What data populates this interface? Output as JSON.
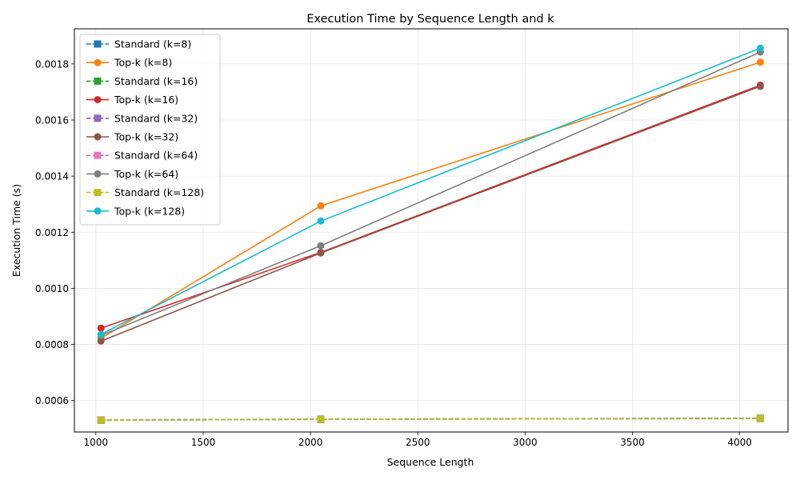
{
  "chart_data": {
    "type": "line",
    "title": "Execution Time by Sequence Length and k",
    "xlabel": "Sequence Length",
    "ylabel": "Execution Time (s)",
    "xlim": [
      900,
      4225
    ],
    "ylim": [
      0.000488,
      0.001925
    ],
    "xticks": [
      1000,
      1500,
      2000,
      2500,
      3000,
      3500,
      4000
    ],
    "xtick_labels": [
      "1000",
      "1500",
      "2000",
      "2500",
      "3000",
      "3500",
      "4000"
    ],
    "yticks": [
      0.0006,
      0.0008,
      0.001,
      0.0012,
      0.0014,
      0.0016,
      0.0018
    ],
    "ytick_labels": [
      "0.0006",
      "0.0008",
      "0.0010",
      "0.0012",
      "0.0014",
      "0.0016",
      "0.0018"
    ],
    "grid": true,
    "legend_position": "top-left",
    "x": [
      1024,
      2048,
      4096
    ],
    "series": [
      {
        "name": "Standard (k=8)",
        "color": "#1f77b4",
        "marker": "square",
        "style": "dashed",
        "values": [
          0.000531,
          0.000534,
          0.000537
        ]
      },
      {
        "name": "Top-k (k=8)",
        "color": "#ff7f0e",
        "marker": "circle",
        "style": "solid",
        "values": [
          0.000822,
          0.001294,
          0.001806
        ]
      },
      {
        "name": "Standard (k=16)",
        "color": "#2ca02c",
        "marker": "square",
        "style": "dashed",
        "values": [
          0.00053,
          0.000533,
          0.000536
        ]
      },
      {
        "name": "Top-k (k=16)",
        "color": "#d62728",
        "marker": "circle",
        "style": "solid",
        "values": [
          0.000858,
          0.001128,
          0.001724
        ]
      },
      {
        "name": "Standard (k=32)",
        "color": "#9467bd",
        "marker": "square",
        "style": "dashed",
        "values": [
          0.00053,
          0.000533,
          0.000537
        ]
      },
      {
        "name": "Top-k (k=32)",
        "color": "#8c564b",
        "marker": "circle",
        "style": "solid",
        "values": [
          0.000812,
          0.001126,
          0.00172
        ]
      },
      {
        "name": "Standard (k=64)",
        "color": "#e377c2",
        "marker": "square",
        "style": "dashed",
        "values": [
          0.000531,
          0.000534,
          0.000536
        ]
      },
      {
        "name": "Top-k (k=64)",
        "color": "#7f7f7f",
        "marker": "circle",
        "style": "solid",
        "values": [
          0.000832,
          0.001152,
          0.001842
        ]
      },
      {
        "name": "Standard (k=128)",
        "color": "#bcbd22",
        "marker": "square",
        "style": "dashed",
        "values": [
          0.00053,
          0.000533,
          0.000536
        ]
      },
      {
        "name": "Top-k (k=128)",
        "color": "#17becf",
        "marker": "circle",
        "style": "solid",
        "values": [
          0.000836,
          0.00124,
          0.001856
        ]
      }
    ]
  }
}
